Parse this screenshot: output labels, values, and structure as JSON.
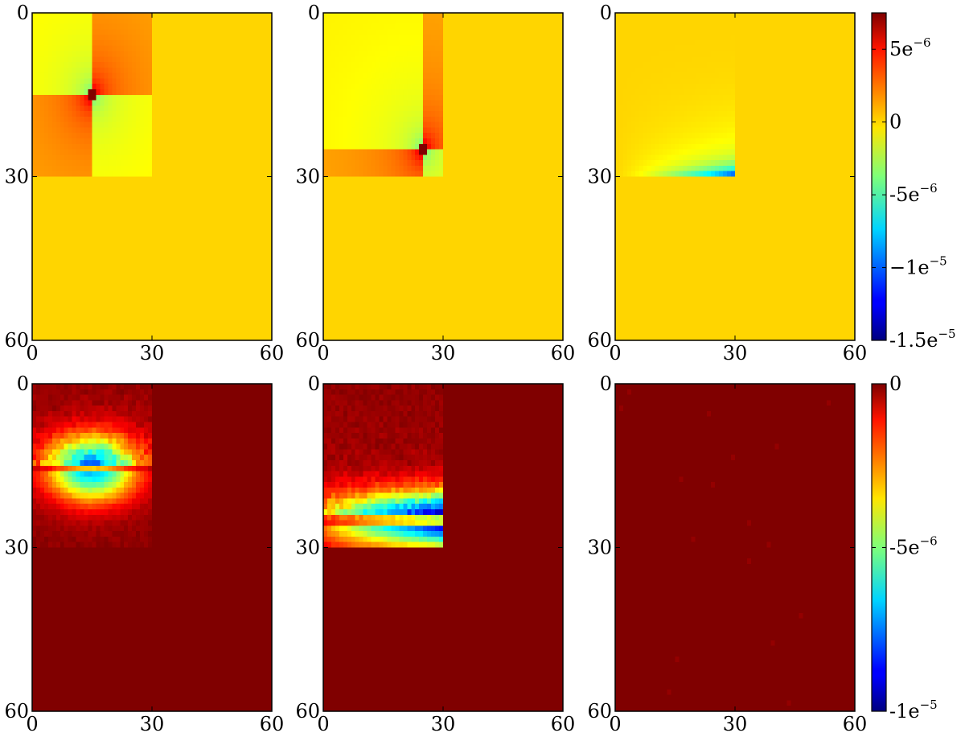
{
  "chart_data": [
    {
      "type": "heatmap",
      "row": "top",
      "panel": 1,
      "x_range": [
        0,
        60
      ],
      "y_range": [
        0,
        60
      ],
      "xticks": [
        "0",
        "30",
        "60"
      ],
      "yticks": [
        "0",
        "30",
        "60"
      ],
      "region": {
        "x": [
          0,
          30
        ],
        "y": [
          0,
          30
        ]
      },
      "feature": "cross-shaped singularity at (15, 15)",
      "background_value": 0
    },
    {
      "type": "heatmap",
      "row": "top",
      "panel": 2,
      "x_range": [
        0,
        60
      ],
      "y_range": [
        0,
        60
      ],
      "xticks": [
        "0",
        "30",
        "60"
      ],
      "yticks": [
        "0",
        "30",
        "60"
      ],
      "region": {
        "x": [
          0,
          30
        ],
        "y": [
          0,
          30
        ]
      },
      "feature": "cross-shaped singularity at (25, 25)",
      "background_value": 0
    },
    {
      "type": "heatmap",
      "row": "top",
      "panel": 3,
      "x_range": [
        0,
        60
      ],
      "y_range": [
        0,
        60
      ],
      "xticks": [
        "0",
        "30",
        "60"
      ],
      "yticks": [
        "0",
        "30",
        "60"
      ],
      "region": {
        "x": [
          0,
          30
        ],
        "y": [
          0,
          30
        ]
      },
      "feature": "negative values concentrated along y = 30 edge",
      "background_value": 0
    },
    {
      "type": "heatmap",
      "row": "bottom",
      "panel": 1,
      "x_range": [
        0,
        60
      ],
      "y_range": [
        0,
        60
      ],
      "xticks": [
        "0",
        "30",
        "60"
      ],
      "yticks": [
        "0",
        "30",
        "60"
      ],
      "region": {
        "x": [
          0,
          30
        ],
        "y": [
          0,
          30
        ]
      },
      "feature": "horizontal negative band centered at y = 15",
      "background_value": 0
    },
    {
      "type": "heatmap",
      "row": "bottom",
      "panel": 2,
      "x_range": [
        0,
        60
      ],
      "y_range": [
        0,
        60
      ],
      "xticks": [
        "0",
        "30",
        "60"
      ],
      "yticks": [
        "0",
        "30",
        "60"
      ],
      "region": {
        "x": [
          0,
          30
        ],
        "y": [
          0,
          30
        ]
      },
      "feature": "horizontal negative band centered at y = 25",
      "background_value": 0
    },
    {
      "type": "heatmap",
      "row": "bottom",
      "panel": 3,
      "x_range": [
        0,
        60
      ],
      "y_range": [
        0,
        60
      ],
      "xticks": [
        "0",
        "30",
        "60"
      ],
      "yticks": [
        "0",
        "30",
        "60"
      ],
      "feature": "uniform",
      "background_value": 0
    }
  ],
  "colorbars": {
    "top": {
      "range": [
        -1.5e-05,
        7.5e-06
      ],
      "colormap": "jet",
      "ticks": [
        {
          "value": 5e-06,
          "base": "5e",
          "exp": "−6"
        },
        {
          "value": 0,
          "base": "0",
          "exp": ""
        },
        {
          "value": -5e-06,
          "base": "-5e",
          "exp": "−6"
        },
        {
          "value": -1e-05,
          "base": "−1e",
          "exp": "−5"
        },
        {
          "value": -1.5e-05,
          "base": "-1.5e",
          "exp": "−5"
        }
      ]
    },
    "bottom": {
      "range": [
        -1e-05,
        0
      ],
      "colormap": "jet",
      "ticks": [
        {
          "value": 0,
          "base": "0",
          "exp": ""
        },
        {
          "value": -5e-06,
          "base": "-5e",
          "exp": "−6"
        },
        {
          "value": -1e-05,
          "base": "-1e",
          "exp": "−5"
        }
      ]
    }
  }
}
